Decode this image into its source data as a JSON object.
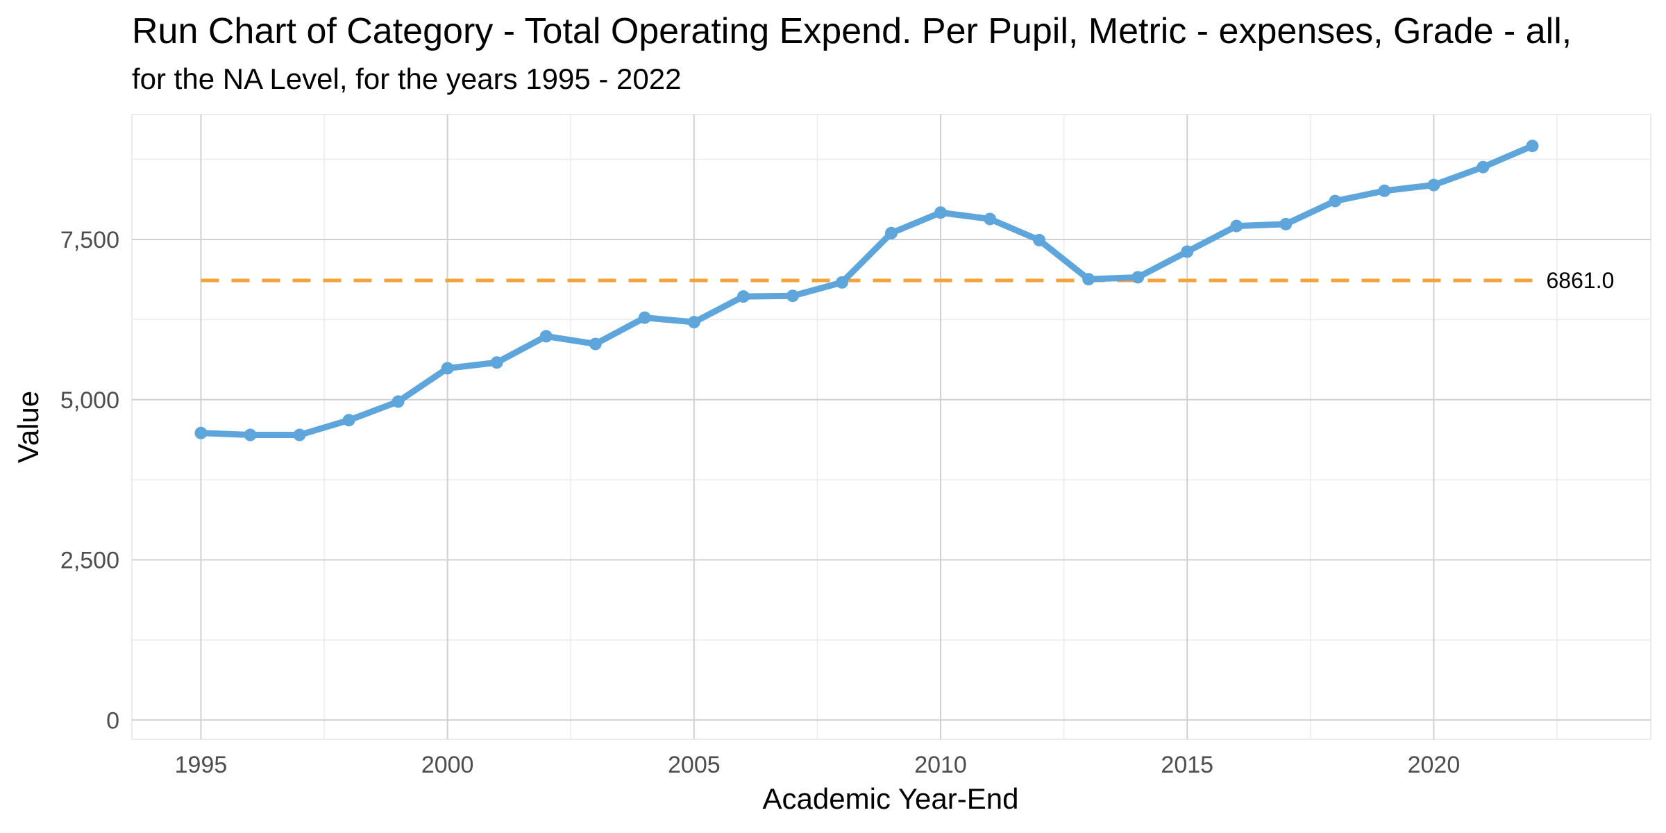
{
  "chart_data": {
    "type": "line",
    "title": "Run Chart of Category - Total Operating Expend. Per Pupil, Metric - expenses, Grade - all,",
    "subtitle": "for the NA Level, for the years 1995 - 2022",
    "xlabel": "Academic Year-End",
    "ylabel": "Value",
    "xlim": [
      1993.6,
      2024.4
    ],
    "ylim": [
      -300,
      9450
    ],
    "x_ticks": [
      1995,
      2000,
      2005,
      2010,
      2015,
      2020
    ],
    "x_tick_labels": [
      "1995",
      "2000",
      "2005",
      "2010",
      "2015",
      "2020"
    ],
    "y_ticks": [
      0,
      2500,
      5000,
      7500
    ],
    "y_tick_labels": [
      "0",
      "2,500",
      "5,000",
      "7,500"
    ],
    "grid": true,
    "series": [
      {
        "x": [
          1995,
          1996,
          1997,
          1998,
          1999,
          2000,
          2001,
          2002,
          2003,
          2004,
          2005,
          2006,
          2007,
          2008,
          2009,
          2010,
          2011,
          2012,
          2013,
          2014,
          2015,
          2016,
          2017,
          2018,
          2019,
          2020,
          2021,
          2022
        ],
        "values": [
          4480,
          4450,
          4450,
          4680,
          4970,
          5490,
          5580,
          5990,
          5870,
          6280,
          6210,
          6610,
          6620,
          6830,
          7600,
          7920,
          7820,
          7490,
          6880,
          6910,
          7310,
          7710,
          7740,
          8100,
          8260,
          8350,
          8630,
          8960
        ],
        "color": "#5DA5DA"
      }
    ],
    "reference_line": {
      "value": 6861.0,
      "label": "6861.0",
      "x_range": [
        1995,
        2022
      ],
      "color": "#F5A23A"
    }
  }
}
